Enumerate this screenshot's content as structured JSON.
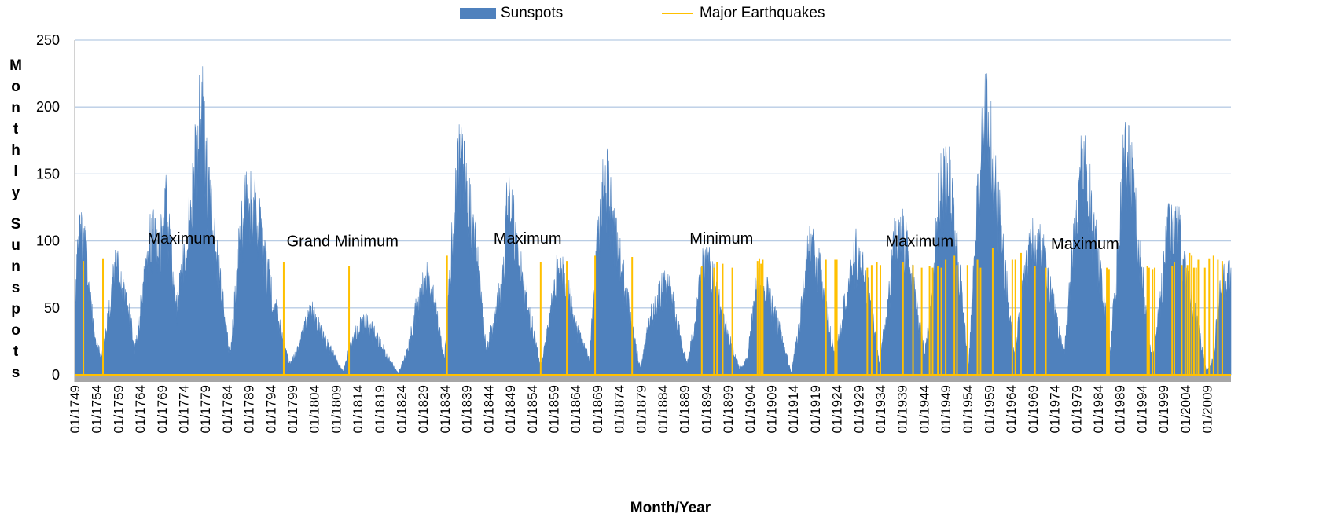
{
  "chart_data": {
    "type": "area",
    "title": "",
    "xlabel": "Month/Year",
    "ylabel": "Monthly Sunspots",
    "ylim": [
      0,
      250
    ],
    "y_ticks": [
      0,
      50,
      100,
      150,
      200,
      250
    ],
    "x_ticks": [
      "01/1749",
      "01/1754",
      "01/1759",
      "01/1764",
      "01/1769",
      "01/1774",
      "01/1779",
      "01/1784",
      "01/1789",
      "01/1794",
      "01/1799",
      "01/1804",
      "01/1809",
      "01/1814",
      "01/1819",
      "01/1824",
      "01/1829",
      "01/1834",
      "01/1839",
      "01/1844",
      "01/1849",
      "01/1854",
      "01/1859",
      "01/1864",
      "01/1869",
      "01/1874",
      "01/1879",
      "01/1884",
      "01/1889",
      "01/1894",
      "01/1899",
      "01/1904",
      "01/1909",
      "01/1914",
      "01/1919",
      "01/1924",
      "01/1929",
      "01/1934",
      "01/1939",
      "01/1944",
      "01/1949",
      "01/1954",
      "01/1959",
      "01/1964",
      "01/1969",
      "01/1974",
      "01/1979",
      "01/1984",
      "01/1989",
      "01/1994",
      "01/1999",
      "01/2004",
      "01/2009"
    ],
    "x_range": [
      1749.0,
      2014.5
    ],
    "grid": true,
    "legend_position": "top",
    "colors": {
      "sunspots": "#4f81bd",
      "earthquakes": "#ffc000",
      "baseline": "#a6a6a6",
      "grid": "#b8cce4"
    },
    "series": [
      {
        "name": "Sunspots",
        "kind": "area",
        "color": "#4f81bd",
        "x": [
          1749.0,
          1750.3,
          1751.5,
          1753.5,
          1755.2,
          1757.0,
          1758.5,
          1761.5,
          1762.8,
          1764.5,
          1766.5,
          1768.5,
          1769.8,
          1771.0,
          1772.5,
          1775.5,
          1776.8,
          1778.3,
          1779.5,
          1781.0,
          1784.7,
          1786.5,
          1788.1,
          1790.0,
          1793.0,
          1797.0,
          1798.3,
          1800.5,
          1802.0,
          1804.2,
          1806.0,
          1810.6,
          1812.5,
          1814.5,
          1816.4,
          1820.0,
          1823.3,
          1825.5,
          1827.5,
          1829.9,
          1831.5,
          1833.9,
          1835.5,
          1837.2,
          1838.5,
          1841.0,
          1843.5,
          1845.5,
          1847.5,
          1848.4,
          1850.0,
          1852.0,
          1856.0,
          1858.0,
          1860.1,
          1861.5,
          1864.0,
          1867.2,
          1869.0,
          1870.6,
          1871.6,
          1873.5,
          1878.9,
          1881.0,
          1883.9,
          1885.5,
          1889.6,
          1891.5,
          1893.3,
          1895.0,
          1898.0,
          1901.7,
          1903.5,
          1905.3,
          1907.0,
          1909.5,
          1913.6,
          1915.5,
          1917.6,
          1919.5,
          1923.6,
          1925.5,
          1928.4,
          1931.0,
          1933.8,
          1936.0,
          1937.4,
          1939.5,
          1944.2,
          1946.0,
          1947.4,
          1949.5,
          1954.3,
          1956.0,
          1957.9,
          1959.5,
          1964.8,
          1966.5,
          1968.9,
          1971.0,
          1976.2,
          1978.0,
          1979.9,
          1981.5,
          1986.8,
          1988.5,
          1989.9,
          1991.5,
          1996.4,
          1998.5,
          2000.2,
          2002.5,
          2008.9,
          2010.5,
          2012.0,
          2014.5
        ],
        "y": [
          62,
          110,
          90,
          30,
          12,
          50,
          82,
          48,
          18,
          58,
          104,
          96,
          135,
          92,
          50,
          120,
          168,
          198,
          145,
          105,
          12,
          88,
          125,
          138,
          80,
          22,
          8,
          20,
          42,
          48,
          28,
          3,
          22,
          40,
          38,
          18,
          1,
          18,
          50,
          72,
          55,
          10,
          90,
          158,
          145,
          98,
          18,
          42,
          80,
          134,
          108,
          70,
          5,
          40,
          82,
          78,
          35,
          12,
          95,
          150,
          135,
          98,
          4,
          40,
          64,
          65,
          8,
          38,
          88,
          78,
          40,
          4,
          12,
          62,
          72,
          48,
          1,
          40,
          95,
          88,
          10,
          48,
          90,
          68,
          8,
          60,
          102,
          102,
          15,
          60,
          130,
          155,
          7,
          110,
          195,
          170,
          12,
          62,
          98,
          95,
          15,
          85,
          155,
          145,
          18,
          88,
          160,
          150,
          10,
          60,
          118,
          105,
          3,
          12,
          68,
          80
        ]
      },
      {
        "name": "Major Earthquakes",
        "kind": "event-lines",
        "color": "#ffc000",
        "x": [
          1751.0,
          1755.5,
          1797.0,
          1812.0,
          1834.5,
          1856.0,
          1862.0,
          1868.5,
          1877.0,
          1893.0,
          1895.8,
          1896.5,
          1897.8,
          1900.0,
          1905.8,
          1906.2,
          1906.6,
          1907.0,
          1921.5,
          1923.6,
          1924.0,
          1931.0,
          1932.0,
          1933.2,
          1934.0,
          1939.2,
          1941.5,
          1943.5,
          1945.3,
          1946.0,
          1947.2,
          1948.0,
          1949.0,
          1951.0,
          1951.6,
          1954.0,
          1956.3,
          1957.0,
          1959.8,
          1964.3,
          1965.0,
          1966.3,
          1969.5,
          1972.0,
          1986.0,
          1986.5,
          1995.3,
          1995.7,
          1996.5,
          1997.0,
          2001.0,
          2001.5,
          2003.2,
          2004.0,
          2004.5,
          2005.0,
          2005.5,
          2006.0,
          2006.5,
          2007.0,
          2008.5,
          2009.5,
          2010.5,
          2011.5,
          2012.5
        ],
        "y": [
          85,
          87,
          84,
          81,
          89,
          84,
          85,
          89,
          88,
          81,
          80,
          84,
          83,
          80,
          85,
          87,
          83,
          86,
          86,
          86,
          86,
          80,
          82,
          84,
          82,
          84,
          82,
          80,
          81,
          80,
          81,
          80,
          86,
          89,
          82,
          82,
          86,
          80,
          95,
          86,
          86,
          91,
          81,
          80,
          80,
          79,
          81,
          80,
          79,
          80,
          81,
          84,
          82,
          80,
          82,
          91,
          89,
          80,
          80,
          86,
          80,
          87,
          89,
          86,
          85
        ]
      }
    ],
    "annotations": [
      {
        "text": "Maximum",
        "x": 1773.5,
        "y": 98
      },
      {
        "text": "Grand Minimum",
        "x": 1810.5,
        "y": 96
      },
      {
        "text": "Maximum",
        "x": 1853.0,
        "y": 98
      },
      {
        "text": "Minimum",
        "x": 1897.5,
        "y": 98
      },
      {
        "text": "Maximum",
        "x": 1943.0,
        "y": 96
      },
      {
        "text": "Maximum",
        "x": 1981.0,
        "y": 94
      }
    ]
  }
}
